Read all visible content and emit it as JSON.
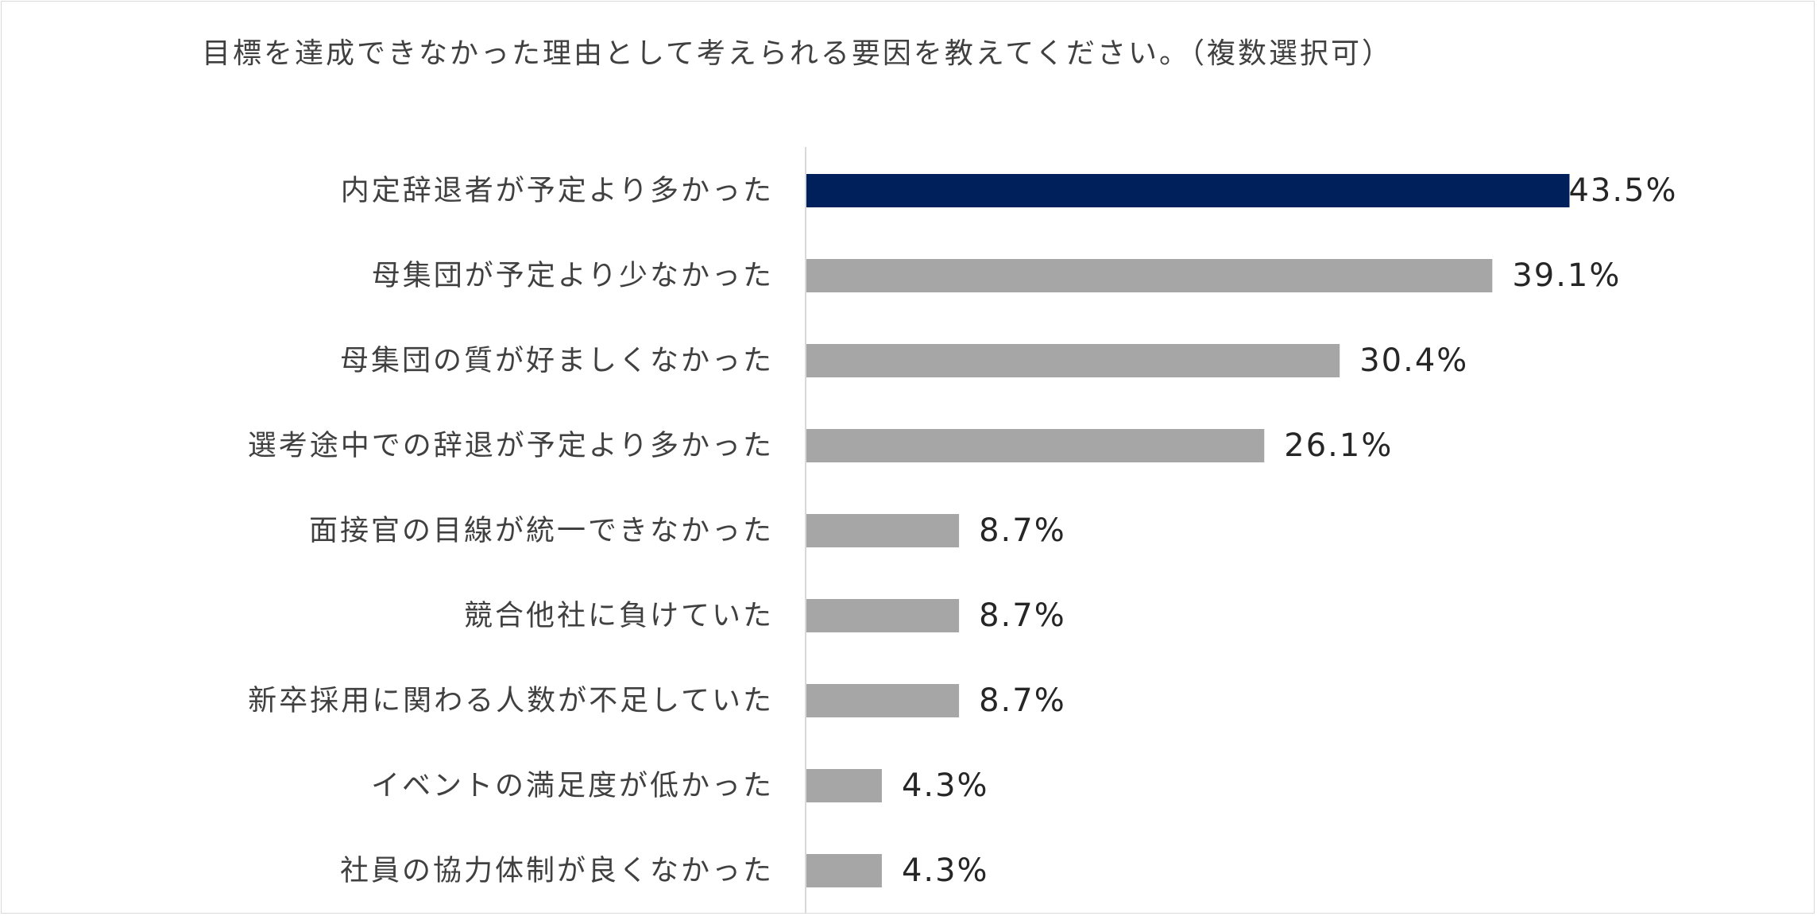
{
  "chart_data": {
    "type": "bar",
    "orientation": "horizontal",
    "title": "目標を達成できなかった理由として考えられる要因を教えてください。（複数選択可）",
    "categories": [
      "内定辞退者が予定より多かった",
      "母集団が予定より少なかった",
      "母集団の質が好ましくなかった",
      "選考途中での辞退が予定より多かった",
      "面接官の目線が統一できなかった",
      "競合他社に負けていた",
      "新卒採用に関わる人数が不足していた",
      "イベントの満足度が低かった",
      "社員の協力体制が良くなかった"
    ],
    "values": [
      43.5,
      39.1,
      30.4,
      26.1,
      8.7,
      8.7,
      8.7,
      4.3,
      4.3
    ],
    "value_labels": [
      "43.5%",
      "39.1%",
      "30.4%",
      "26.1%",
      "8.7%",
      "8.7%",
      "8.7%",
      "4.3%",
      "4.3%"
    ],
    "xlim": [
      0,
      50
    ],
    "grid": false,
    "colors": {
      "highlight": "#00205B",
      "default": "#A6A6A6",
      "axis": "#d9d9d9"
    },
    "highlight_index": 0
  }
}
